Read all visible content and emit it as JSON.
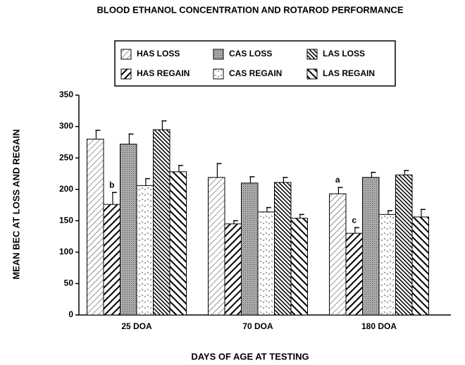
{
  "chart_data": {
    "type": "bar",
    "title": "BLOOD ETHANOL CONCENTRATION AND ROTAROD PERFORMANCE",
    "y_label": "MEAN BEC AT LOSS AND REGAIN",
    "x_label": "DAYS OF AGE AT TESTING",
    "categories": [
      "25 DOA",
      "70 DOA",
      "180 DOA"
    ],
    "ylim": [
      0,
      350
    ],
    "yticks": [
      0,
      50,
      100,
      150,
      200,
      250,
      300,
      350
    ],
    "series": [
      {
        "name": "HAS LOSS",
        "pattern": "light-hatch",
        "values": [
          280,
          219,
          193
        ],
        "errors": [
          14,
          22,
          10
        ]
      },
      {
        "name": "HAS REGAIN",
        "pattern": "bold-hatch",
        "values": [
          176,
          145,
          130
        ],
        "errors": [
          19,
          5,
          9
        ]
      },
      {
        "name": "CAS LOSS",
        "pattern": "stipple",
        "values": [
          272,
          210,
          219
        ],
        "errors": [
          16,
          10,
          8
        ]
      },
      {
        "name": "CAS REGAIN",
        "pattern": "dash",
        "values": [
          206,
          164,
          160
        ],
        "errors": [
          11,
          7,
          6
        ]
      },
      {
        "name": "LAS LOSS",
        "pattern": "dark-hatch",
        "values": [
          295,
          211,
          223
        ],
        "errors": [
          14,
          8,
          7
        ]
      },
      {
        "name": "LAS REGAIN",
        "pattern": "bold-back-hatch",
        "values": [
          228,
          154,
          156
        ],
        "errors": [
          10,
          6,
          12
        ]
      }
    ],
    "annotations": [
      {
        "text": "b",
        "category": "25 DOA",
        "series": "HAS REGAIN"
      },
      {
        "text": "a",
        "category": "180 DOA",
        "series": "HAS LOSS"
      },
      {
        "text": "c",
        "category": "180 DOA",
        "series": "HAS REGAIN"
      }
    ]
  }
}
